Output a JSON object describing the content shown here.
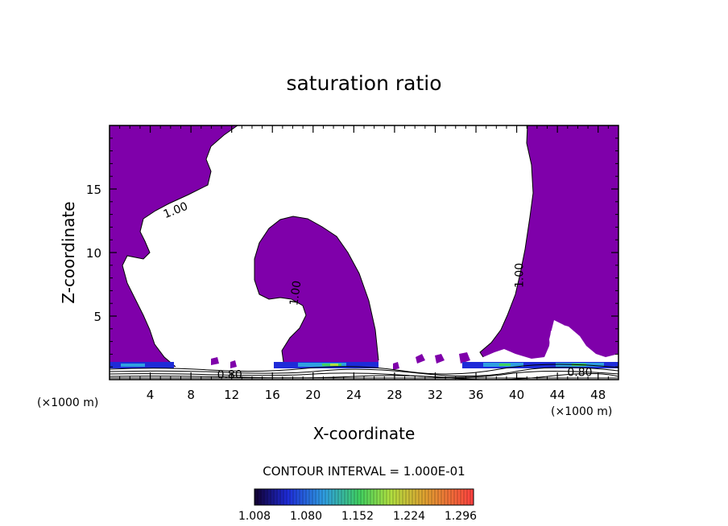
{
  "chart_data": {
    "type": "heatmap",
    "title": "saturation ratio",
    "xlabel": "X-coordinate",
    "ylabel": "Z-coordinate",
    "x_unit": "(×1000 m)",
    "x_unit_right": "(×1000 m)",
    "xlim": [
      0,
      50
    ],
    "ylim": [
      0,
      20
    ],
    "x_ticks": [
      4,
      8,
      12,
      16,
      20,
      24,
      28,
      32,
      36,
      40,
      44,
      48
    ],
    "y_ticks": [
      5,
      10,
      15
    ],
    "contour_labels": [
      {
        "text": "1.00",
        "x": 6.5,
        "y": 13.3,
        "rotate": -22
      },
      {
        "text": "1.00",
        "x": 18.3,
        "y": 6.8,
        "rotate": -82
      },
      {
        "text": "1.00",
        "x": 40.3,
        "y": 8.2,
        "rotate": -90
      },
      {
        "text": "0.80",
        "x": 11.8,
        "y": 0.35,
        "rotate": 0
      },
      {
        "text": "0.80",
        "x": 46.2,
        "y": 0.55,
        "rotate": 0
      }
    ],
    "contour_interval": "CONTOUR INTERVAL = 1.000E-01",
    "colorbar": {
      "labels": [
        "1.008",
        "1.080",
        "1.152",
        "1.224",
        "1.296"
      ],
      "min": 1.008,
      "max": 1.314
    },
    "colors": {
      "supersaturated": "#7f00aa",
      "low_end": "#1a0a3a",
      "high_end": "#ff3030"
    }
  }
}
